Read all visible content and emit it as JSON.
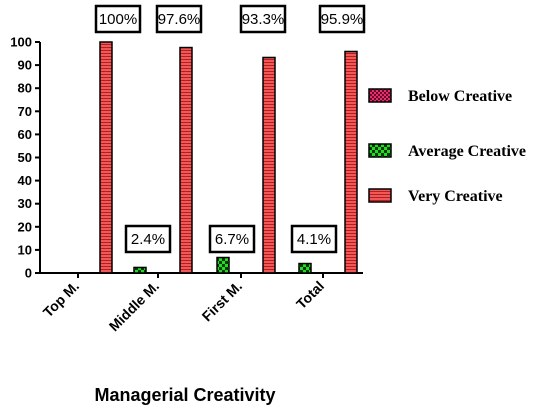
{
  "chart_data": {
    "type": "bar",
    "title": "",
    "xlabel": "Managerial Creativity",
    "ylabel": "",
    "categories": [
      "Top M.",
      "Middle M.",
      "First M.",
      "Total"
    ],
    "ylim": [
      0,
      100
    ],
    "yticks": [
      0,
      10,
      20,
      30,
      40,
      50,
      60,
      70,
      80,
      90,
      100
    ],
    "grid": false,
    "legend_position": "right",
    "series": [
      {
        "name": "Below Creative",
        "values": [
          0,
          0,
          0,
          0
        ],
        "labels": [
          "",
          "",
          "",
          ""
        ],
        "color": "#e83070",
        "pattern": "checker-fine"
      },
      {
        "name": "Average Creative",
        "values": [
          0,
          2.4,
          6.7,
          4.1
        ],
        "labels": [
          "",
          "2.4%",
          "6.7%",
          "4.1%"
        ],
        "color": "#22dd22",
        "pattern": "checker"
      },
      {
        "name": "Very Creative",
        "values": [
          100,
          97.6,
          93.3,
          95.9
        ],
        "labels": [
          "100%",
          "97.6%",
          "93.3%",
          "95.9%"
        ],
        "color": "#f25858",
        "pattern": "stripes"
      }
    ]
  }
}
